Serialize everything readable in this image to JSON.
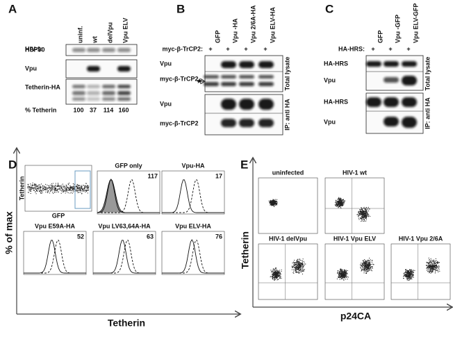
{
  "panelA": {
    "letter": "A",
    "group_label": "HIV-1:",
    "lanes": [
      "uninf.",
      "wt",
      "delVpu",
      "Vpu ELV"
    ],
    "rows": [
      "HSP90",
      "Vpu",
      "Tetherin-HA"
    ],
    "footer_label": "% Tetherin",
    "footer_values": [
      "100",
      "37",
      "114",
      "160"
    ]
  },
  "panelB": {
    "letter": "B",
    "group_label": "myc-β-TrCP2:",
    "plus": [
      "+",
      "+",
      "+",
      "+"
    ],
    "lanes": [
      "GFP",
      "Vpu -HA",
      "Vpu 2/6A-HA",
      "Vpu ELV-HA"
    ],
    "rows": [
      "Vpu",
      "myc-β-TrCP2",
      "Vpu",
      "myc-β-TrCP2"
    ],
    "side_labels": [
      "Total lysate",
      "IP: anti HA"
    ]
  },
  "panelC": {
    "letter": "C",
    "group_label": "HA-HRS:",
    "plus": [
      "+",
      "+",
      "+"
    ],
    "lanes": [
      "GFP",
      "Vpu -GFP",
      "Vpu ELV-GFP"
    ],
    "rows": [
      "HA-HRS",
      "Vpu",
      "HA-HRS",
      "Vpu"
    ],
    "side_labels": [
      "Total lysate",
      "IP: anti HA"
    ]
  },
  "panelD": {
    "letter": "D",
    "y_label": "% of max",
    "x_label": "Tetherin",
    "scatter_y_label": "Tetherin",
    "scatter_x_label": "GFP",
    "plots": [
      {
        "title": "GFP only",
        "value": "117"
      },
      {
        "title": "Vpu-HA",
        "value": "17"
      },
      {
        "title": "Vpu E59A-HA",
        "value": "52"
      },
      {
        "title": "Vpu LV63,64A-HA",
        "value": "63"
      },
      {
        "title": "Vpu ELV-HA",
        "value": "76"
      }
    ]
  },
  "panelE": {
    "letter": "E",
    "y_label": "Tetherin",
    "x_label": "p24CA",
    "plots": [
      "uninfected",
      "HIV-1 wt",
      "HIV-1 delVpu",
      "HIV-1 Vpu ELV",
      "HIV-1 Vpu 2/6A"
    ]
  }
}
